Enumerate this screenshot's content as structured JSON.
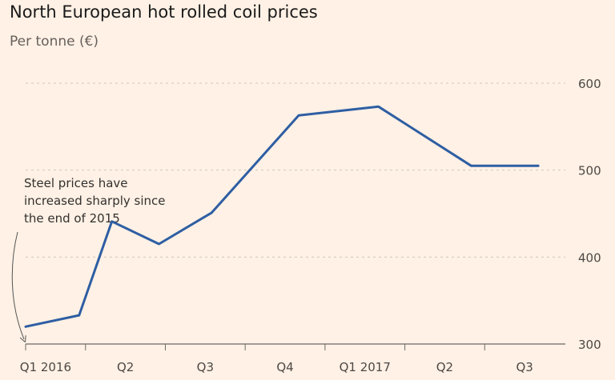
{
  "header": {
    "title": "North European hot rolled coil prices",
    "subtitle": "Per tonne (€)"
  },
  "chart_data": {
    "type": "line",
    "title": "North European hot rolled coil prices",
    "subtitle": "Per tonne (€)",
    "ylabel": "",
    "xlabel": "",
    "ylim": [
      300,
      600
    ],
    "yticks": [
      300,
      400,
      500,
      600
    ],
    "y_axis_side": "right",
    "grid": "horizontal dashed",
    "x_tick_positions": [
      0.25,
      1.25,
      2.25,
      3.25,
      4.25,
      5.25,
      6.25
    ],
    "x_tick_labels": [
      "Q1 2016",
      "Q2",
      "Q3",
      "Q4",
      "Q1 2017",
      "Q2",
      "Q3"
    ],
    "xlim": [
      0,
      6.7
    ],
    "series": [
      {
        "color": "#2e5ea3",
        "x": [
          0,
          0.67,
          1.08,
          1.67,
          2.33,
          3.42,
          4.42,
          5.58,
          6.42
        ],
        "values": [
          320,
          333,
          441,
          415,
          451,
          563,
          573,
          505,
          505
        ]
      }
    ],
    "annotations": [
      {
        "lines": [
          "Steel prices have",
          "increased sharply since",
          "the end of 2015"
        ]
      }
    ]
  }
}
